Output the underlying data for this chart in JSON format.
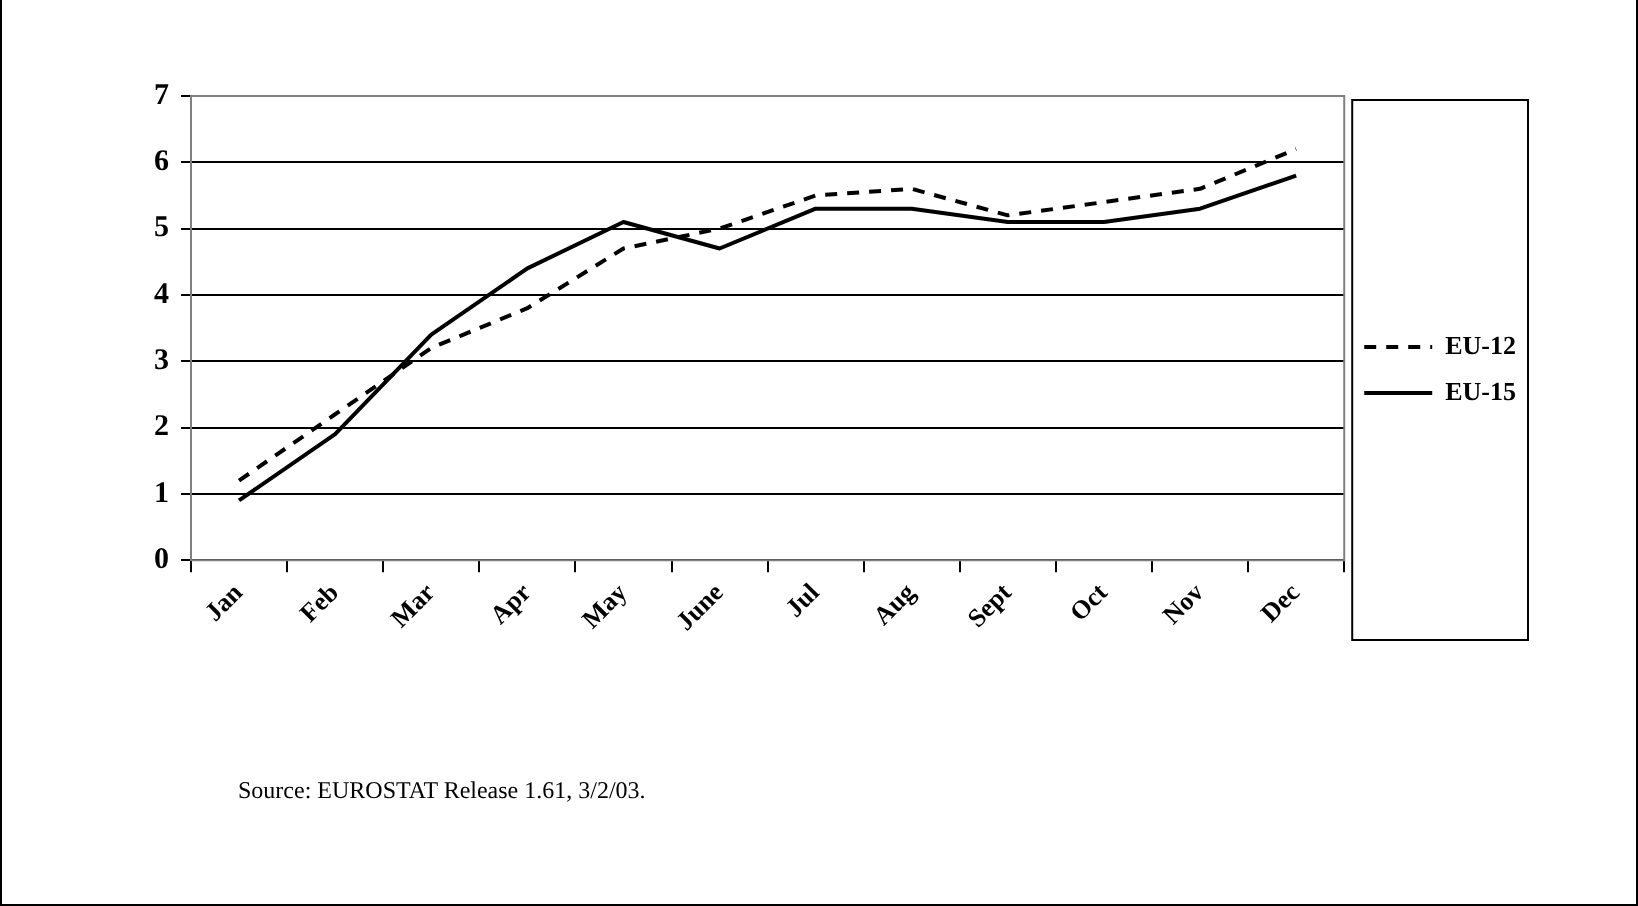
{
  "chart_data": {
    "type": "line",
    "categories": [
      "Jan",
      "Feb",
      "Mar",
      "Apr",
      "May",
      "June",
      "Jul",
      "Aug",
      "Sept",
      "Oct",
      "Nov",
      "Dec"
    ],
    "series": [
      {
        "name": "EU-12",
        "color": "#000000",
        "line_style": "dashed",
        "values": [
          1.2,
          2.2,
          3.2,
          3.8,
          4.7,
          5.0,
          5.5,
          5.6,
          5.2,
          5.4,
          5.6,
          6.2
        ]
      },
      {
        "name": "EU-15",
        "color": "#000000",
        "line_style": "solid",
        "values": [
          0.9,
          1.9,
          3.4,
          4.4,
          5.1,
          4.7,
          5.3,
          5.3,
          5.1,
          5.1,
          5.3,
          5.8
        ]
      }
    ],
    "ylim": [
      0,
      7
    ],
    "yticks": [
      0,
      1,
      2,
      3,
      4,
      5,
      6,
      7
    ],
    "grid": "y",
    "legend": "right",
    "marker": "none",
    "annotations": [
      "Source: EUROSTAT Release 1.61, 3/2/03."
    ]
  }
}
